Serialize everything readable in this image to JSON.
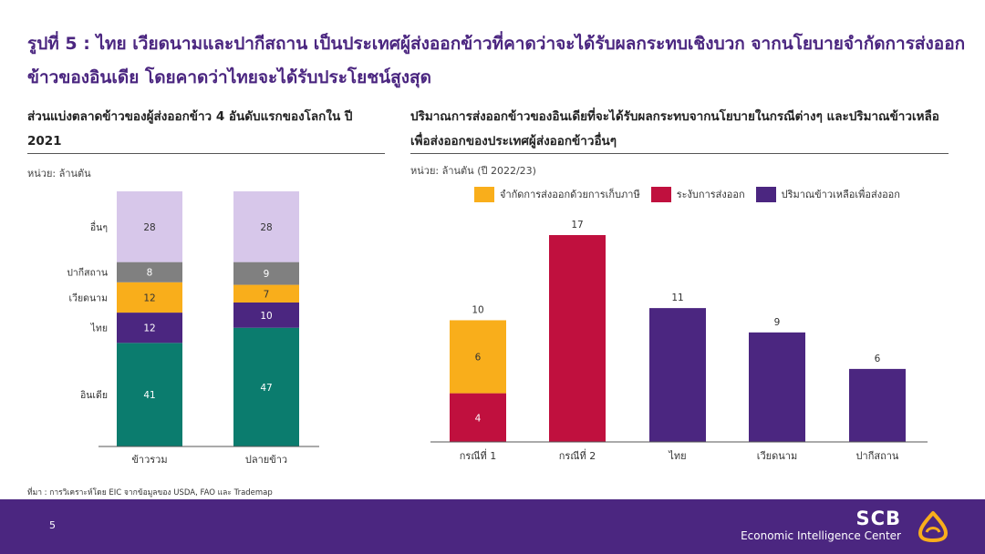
{
  "title": "รูปที่ 5 : ไทย เวียดนามและปากีสถาน เป็นประเทศผู้ส่งออกข้าวที่คาดว่าจะได้รับผลกระทบเชิงบวก จากนโยบายจำกัดการส่งออกข้าวของอินเดีย โดยคาดว่าไทยจะได้รับประโยชน์สูงสุด",
  "left_panel": {
    "title": "ส่วนแบ่งตลาดข้าวของผู้ส่งออกข้าว 4 อันดับแรกของโลกใน ปี 2021",
    "unit": "หน่วย: ล้านตัน"
  },
  "right_panel": {
    "title": "ปริมาณการส่งออกข้าวของอินเดียที่จะได้รับผลกระทบจากนโยบายในกรณีต่างๆ และปริมาณข้าวเหลือเพื่อส่งออกของประเทศผู้ส่งออกข้าวอื่นๆ",
    "unit": "หน่วย: ล้านตัน (ปี 2022/23)"
  },
  "colors": {
    "india": "#0b7c6e",
    "thailand": "#4b2680",
    "vietnam": "#f9ae1b",
    "pakistan": "#808080",
    "others": "#d7c7ea",
    "restriction_tax": "#f9ae1b",
    "suspension": "#c0103e",
    "remaining": "#4b2680"
  },
  "chart_data": [
    {
      "type": "bar",
      "stacked": true,
      "categories": [
        "ข้าวรวม",
        "ปลายข้าว"
      ],
      "series": [
        {
          "name": "อินเดีย",
          "values": [
            41,
            47
          ]
        },
        {
          "name": "ไทย",
          "values": [
            12,
            10
          ]
        },
        {
          "name": "เวียดนาม",
          "values": [
            12,
            7
          ]
        },
        {
          "name": "ปากีสถาน",
          "values": [
            8,
            9
          ]
        },
        {
          "name": "อื่นๆ",
          "values": [
            28,
            28
          ]
        }
      ],
      "ylim": [
        0,
        101
      ],
      "grid": false,
      "legend": "left-labels"
    },
    {
      "type": "bar",
      "stacked": true,
      "categories": [
        "กรณีที่ 1",
        "กรณีที่ 2",
        "ไทย",
        "เวียดนาม",
        "ปากีสถาน"
      ],
      "series": [
        {
          "name": "จำกัดการส่งออกด้วยการเก็บภาษี",
          "values": [
            6,
            0,
            0,
            0,
            0
          ]
        },
        {
          "name": "ระงับการส่งออก",
          "values": [
            4,
            17,
            0,
            0,
            0
          ]
        },
        {
          "name": "ปริมาณข้าวเหลือเพื่อส่งออก",
          "values": [
            0,
            0,
            11,
            9,
            6
          ]
        }
      ],
      "totals": [
        10,
        17,
        11,
        9,
        6
      ],
      "ylim": [
        0,
        17
      ],
      "grid": false,
      "legend": "top"
    }
  ],
  "source": "ที่มา : การวิเคราะห์โดย EIC จากข้อมูลของ USDA, FAO และ Trademap",
  "footer": {
    "page_number": "5",
    "brand_name": "SCB",
    "brand_subtitle": "Economic Intelligence Center"
  }
}
